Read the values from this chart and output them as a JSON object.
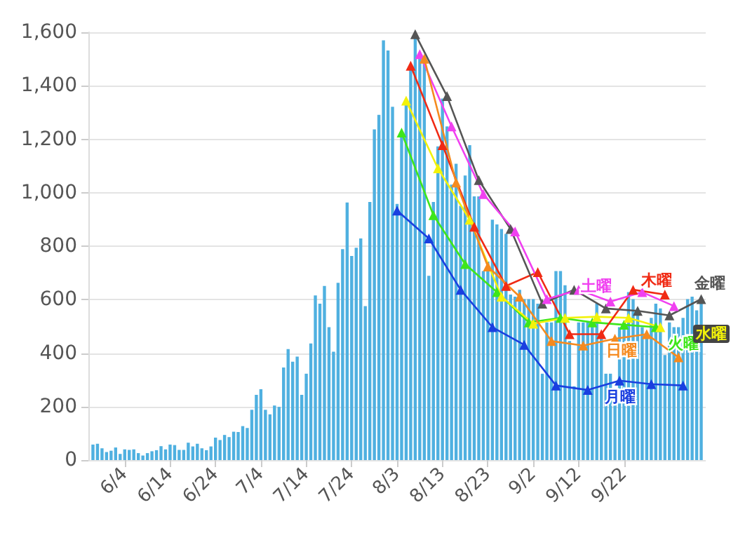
{
  "chart_data": {
    "type": "bar",
    "x": [
      "--05-28",
      "--05-29",
      "--05-30",
      "--05-31",
      "--06-01",
      "--06-02",
      "--06-03",
      "--06-04",
      "--06-05",
      "--06-06",
      "--06-07",
      "--06-08",
      "--06-09",
      "--06-10",
      "--06-11",
      "--06-12",
      "--06-13",
      "--06-14",
      "--06-15",
      "--06-16",
      "--06-17",
      "--06-18",
      "--06-19",
      "--06-20",
      "--06-21",
      "--06-22",
      "--06-23",
      "--06-24",
      "--06-25",
      "--06-26",
      "--06-27",
      "--06-28",
      "--06-29",
      "--06-30",
      "--07-01",
      "--07-02",
      "--07-03",
      "--07-04",
      "--07-05",
      "--07-06",
      "--07-07",
      "--07-08",
      "--07-09",
      "--07-10",
      "--07-11",
      "--07-12",
      "--07-13",
      "--07-14",
      "--07-15",
      "--07-16",
      "--07-17",
      "--07-18",
      "--07-19",
      "--07-20",
      "--07-21",
      "--07-22",
      "--07-23",
      "--07-24",
      "--07-25",
      "--07-26",
      "--07-27",
      "--07-28",
      "--07-29",
      "--07-30",
      "--07-31",
      "--08-01",
      "--08-02",
      "--08-03",
      "--08-04",
      "--08-05",
      "--08-06",
      "--08-07",
      "--08-08",
      "--08-09",
      "--08-10",
      "--08-11",
      "--08-12",
      "--08-13",
      "--08-14",
      "--08-15",
      "--08-16",
      "--08-17",
      "--08-18",
      "--08-19",
      "--08-20",
      "--08-21",
      "--08-22",
      "--08-23",
      "--08-24",
      "--08-25",
      "--08-26",
      "--08-27",
      "--08-28",
      "--08-29",
      "--08-30",
      "--08-31",
      "--09-01",
      "--09-02",
      "--09-03",
      "--09-04",
      "--09-05",
      "--09-06",
      "--09-07",
      "--09-08",
      "--09-09",
      "--09-10",
      "--09-11",
      "--09-12",
      "--09-13",
      "--09-14",
      "--09-15",
      "--09-16",
      "--09-17",
      "--09-18",
      "--09-19",
      "--09-20",
      "--09-21",
      "--09-22",
      "--09-23",
      "--09-24",
      "--09-25",
      "--09-26",
      "--09-27",
      "--09-28",
      "--09-29",
      "--09-30",
      "--10-01",
      "--10-02",
      "--10-03",
      "--10-04",
      "--10-05",
      "--10-06",
      "--10-07",
      "--10-08",
      "--10-09"
    ],
    "ylim": [
      0,
      1600
    ],
    "yticks": [
      0,
      {
        "value": 200,
        "label": "200"
      },
      {
        "value": 400,
        "label": "400"
      },
      {
        "value": 600,
        "label": "600"
      },
      {
        "value": 800,
        "label": "800"
      },
      {
        "value": 1000,
        "label": "1,000"
      },
      {
        "value": 1200,
        "label": "1,200"
      },
      {
        "value": 1400,
        "label": "1,400"
      },
      {
        "value": 1600,
        "label": "1,600"
      }
    ],
    "xlim": [
      "--05-27",
      "--10-10"
    ],
    "xticks": [
      {
        "value": "--06-04",
        "label": "6/4"
      },
      {
        "value": "--06-14",
        "label": "6/14"
      },
      {
        "value": "--06-24",
        "label": "6/24"
      },
      {
        "value": "--07-04",
        "label": "7/4"
      },
      {
        "value": "--07-14",
        "label": "7/14"
      },
      {
        "value": "--07-24",
        "label": "7/24"
      },
      {
        "value": "--08-03",
        "label": "8/3"
      },
      {
        "value": "--08-13",
        "label": "8/13"
      },
      {
        "value": "--08-23",
        "label": "8/23"
      },
      {
        "value": "--09-02",
        "label": "9/2"
      },
      {
        "value": "--09-12",
        "label": "9/12"
      },
      {
        "value": "--09-22",
        "label": "9/22"
      }
    ],
    "grid": "y",
    "legend": false,
    "series": [
      {
        "color": "#4fb0e0",
        "values": [
          58,
          61,
          44,
          30,
          35,
          47,
          23,
          40,
          38,
          40,
          26,
          17,
          26,
          33,
          37,
          52,
          40,
          58,
          56,
          38,
          38,
          65,
          51,
          61,
          44,
          37,
          51,
          84,
          75,
          94,
          86,
          106,
          105,
          127,
          120,
          188,
          244,
          265,
          188,
          171,
          204,
          199,
          346,
          415,
          368,
          387,
          244,
          323,
          436,
          616,
          585,
          651,
          497,
          405,
          663,
          789,
          963,
          763,
          794,
          829,
          576,
          965,
          1237,
          1291,
          1570,
          1532,
          1321,
          958,
          1225,
          1344,
          1475,
          1593,
          1518,
          1501,
          689,
          965,
          1173,
          1352,
          1248,
          1030,
          1108,
          951,
          1064,
          1178,
          986,
          986,
          707,
          742,
          899,
          881,
          864,
          846,
          619,
          611,
          637,
          602,
          602,
          602,
          585,
          323,
          515,
          515,
          707,
          707,
          654,
          445,
          276,
          515,
          515,
          515,
          515,
          585,
          462,
          323,
          323,
          218,
          497,
          515,
          628,
          602,
          567,
          497,
          462,
          532,
          585,
          567,
          393,
          515,
          497,
          497,
          532,
          602,
          611,
          560,
          610
        ]
      },
      {
        "type": "line",
        "name": "月曜",
        "color": "#1a3fe0",
        "x": [
          "--08-03",
          "--08-10",
          "--08-17",
          "--08-24",
          "--08-31",
          "--09-07",
          "--09-14",
          "--09-21",
          "--09-28",
          "--10-05"
        ],
        "values": [
          933,
          829,
          637,
          497,
          431,
          279,
          262,
          297,
          284,
          279
        ]
      },
      {
        "type": "line",
        "name": "火曜",
        "color": "#3ee61a",
        "x": [
          "--08-04",
          "--08-11",
          "--08-18",
          "--08-25",
          "--09-01",
          "--09-08",
          "--09-15",
          "--09-22",
          "--09-29"
        ],
        "values": [
          1225,
          916,
          733,
          628,
          515,
          532,
          515,
          506,
          497
        ]
      },
      {
        "type": "line",
        "name": "水曜",
        "color": "#f2f20a",
        "x": [
          "--08-05",
          "--08-12",
          "--08-19",
          "--08-26",
          "--09-02",
          "--09-09",
          "--09-16",
          "--09-23",
          "--09-30"
        ],
        "values": [
          1344,
          1091,
          899,
          611,
          510,
          532,
          536,
          532,
          497
        ]
      },
      {
        "type": "line",
        "name": "木曜",
        "color": "#f02a14",
        "x": [
          "--08-06",
          "--08-13",
          "--08-20",
          "--08-27",
          "--09-03",
          "--09-10",
          "--09-17",
          "--09-24",
          "--10-01"
        ],
        "values": [
          1475,
          1178,
          873,
          651,
          703,
          471,
          471,
          637,
          619
        ]
      },
      {
        "type": "line",
        "name": "金曜",
        "color": "#555555",
        "x": [
          "--08-07",
          "--08-14",
          "--08-21",
          "--08-28",
          "--09-04",
          "--09-11",
          "--09-18",
          "--09-25",
          "--10-02",
          "--10-09"
        ],
        "values": [
          1593,
          1361,
          1047,
          864,
          585,
          637,
          567,
          558,
          541,
          602
        ]
      },
      {
        "type": "line",
        "name": "土曜",
        "color": "#f040f0",
        "x": [
          "--08-08",
          "--08-15",
          "--08-22",
          "--08-29",
          "--09-05",
          "--09-12",
          "--09-19",
          "--09-26",
          "--10-03"
        ],
        "values": [
          1518,
          1248,
          995,
          855,
          602,
          637,
          593,
          628,
          576
        ]
      },
      {
        "type": "line",
        "name": "日曜",
        "color": "#f58a1f",
        "x": [
          "--08-09",
          "--08-16",
          "--08-23",
          "--08-30",
          "--09-06",
          "--09-13",
          "--09-20",
          "--09-27",
          "--10-04"
        ],
        "values": [
          1501,
          1038,
          724,
          611,
          445,
          428,
          454,
          471,
          384
        ]
      }
    ],
    "marker": "triangle",
    "line_style": "solid"
  }
}
